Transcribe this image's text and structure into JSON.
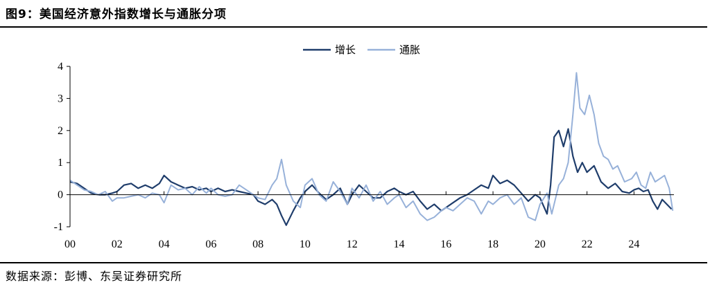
{
  "title": "图9：美国经济意外指数增长与通胀分项",
  "source": "数据来源：彭博、东吴证券研究所",
  "colors": {
    "growth": "#1f3d6b",
    "inflation": "#97b1d9",
    "axis": "#000000"
  },
  "chart_data": {
    "type": "line",
    "title": "",
    "xlabel": "",
    "ylabel": "",
    "xlim": [
      2000,
      2025.7
    ],
    "ylim": [
      -1,
      4
    ],
    "x_ticks": [
      2000,
      2002,
      2004,
      2006,
      2008,
      2010,
      2012,
      2014,
      2016,
      2018,
      2020,
      2022,
      2024
    ],
    "x_tick_labels": [
      "00",
      "02",
      "04",
      "06",
      "08",
      "10",
      "12",
      "14",
      "16",
      "18",
      "20",
      "22",
      "24"
    ],
    "y_ticks": [
      -1,
      0,
      1,
      2,
      3,
      4
    ],
    "y_tick_labels": [
      "-1",
      "0",
      "1",
      "2",
      "3",
      "4"
    ],
    "grid": false,
    "legend_position": "top-center",
    "series": [
      {
        "name": "增长",
        "color": "#1f3d6b",
        "x": [
          2000.0,
          2000.3,
          2000.6,
          2000.9,
          2001.2,
          2001.5,
          2001.8,
          2002.0,
          2002.3,
          2002.6,
          2002.9,
          2003.2,
          2003.5,
          2003.8,
          2004.0,
          2004.3,
          2004.6,
          2004.9,
          2005.2,
          2005.5,
          2005.8,
          2006.0,
          2006.3,
          2006.6,
          2006.9,
          2007.2,
          2007.5,
          2007.8,
          2008.0,
          2008.3,
          2008.6,
          2008.8,
          2009.0,
          2009.2,
          2009.5,
          2009.8,
          2010.0,
          2010.3,
          2010.6,
          2010.9,
          2011.2,
          2011.5,
          2011.8,
          2012.0,
          2012.3,
          2012.6,
          2012.9,
          2013.2,
          2013.5,
          2013.8,
          2014.0,
          2014.3,
          2014.6,
          2014.9,
          2015.2,
          2015.5,
          2015.8,
          2016.0,
          2016.3,
          2016.6,
          2016.9,
          2017.2,
          2017.5,
          2017.8,
          2018.0,
          2018.3,
          2018.6,
          2018.9,
          2019.2,
          2019.5,
          2019.8,
          2020.0,
          2020.3,
          2020.45,
          2020.6,
          2020.8,
          2021.0,
          2021.2,
          2021.4,
          2021.6,
          2021.8,
          2022.0,
          2022.3,
          2022.6,
          2022.9,
          2023.2,
          2023.5,
          2023.8,
          2024.0,
          2024.2,
          2024.4,
          2024.6,
          2024.8,
          2025.0,
          2025.2,
          2025.4,
          2025.6
        ],
        "values": [
          0.4,
          0.35,
          0.2,
          0.05,
          0.0,
          0.0,
          0.05,
          0.1,
          0.3,
          0.35,
          0.2,
          0.3,
          0.2,
          0.35,
          0.6,
          0.4,
          0.3,
          0.2,
          0.25,
          0.15,
          0.2,
          0.1,
          0.2,
          0.1,
          0.15,
          0.1,
          0.05,
          0.0,
          -0.2,
          -0.3,
          -0.15,
          -0.3,
          -0.65,
          -0.95,
          -0.5,
          -0.1,
          0.1,
          0.3,
          0.05,
          -0.15,
          0.0,
          0.2,
          -0.3,
          0.0,
          0.3,
          0.1,
          -0.1,
          -0.1,
          0.1,
          0.2,
          0.1,
          0.0,
          0.1,
          -0.2,
          -0.45,
          -0.3,
          -0.5,
          -0.4,
          -0.25,
          -0.1,
          0.0,
          0.15,
          0.3,
          0.2,
          0.6,
          0.35,
          0.45,
          0.3,
          0.05,
          -0.2,
          0.0,
          -0.1,
          -0.6,
          0.3,
          1.8,
          2.0,
          1.5,
          2.05,
          1.2,
          0.7,
          1.0,
          0.7,
          0.9,
          0.4,
          0.2,
          0.35,
          0.1,
          0.05,
          0.15,
          0.2,
          0.1,
          0.15,
          -0.2,
          -0.45,
          -0.15,
          -0.3,
          -0.45
        ]
      },
      {
        "name": "通胀",
        "color": "#97b1d9",
        "x": [
          2000.0,
          2000.3,
          2000.6,
          2000.9,
          2001.2,
          2001.5,
          2001.8,
          2002.0,
          2002.3,
          2002.6,
          2002.9,
          2003.2,
          2003.5,
          2003.8,
          2004.0,
          2004.3,
          2004.6,
          2004.9,
          2005.2,
          2005.5,
          2005.8,
          2006.0,
          2006.3,
          2006.6,
          2006.9,
          2007.2,
          2007.5,
          2007.8,
          2008.0,
          2008.3,
          2008.6,
          2008.8,
          2009.0,
          2009.2,
          2009.5,
          2009.8,
          2010.0,
          2010.3,
          2010.6,
          2010.9,
          2011.2,
          2011.5,
          2011.8,
          2012.0,
          2012.3,
          2012.6,
          2012.9,
          2013.2,
          2013.5,
          2013.8,
          2014.0,
          2014.3,
          2014.6,
          2014.9,
          2015.2,
          2015.5,
          2015.8,
          2016.0,
          2016.3,
          2016.6,
          2016.9,
          2017.2,
          2017.5,
          2017.8,
          2018.0,
          2018.3,
          2018.6,
          2018.9,
          2019.2,
          2019.5,
          2019.8,
          2020.0,
          2020.3,
          2020.5,
          2020.8,
          2021.0,
          2021.2,
          2021.4,
          2021.55,
          2021.7,
          2021.9,
          2022.1,
          2022.3,
          2022.5,
          2022.7,
          2022.9,
          2023.1,
          2023.3,
          2023.6,
          2023.9,
          2024.1,
          2024.3,
          2024.5,
          2024.7,
          2024.9,
          2025.1,
          2025.3,
          2025.5,
          2025.65
        ],
        "values": [
          0.45,
          0.3,
          0.15,
          0.1,
          0.0,
          0.1,
          -0.2,
          -0.1,
          -0.1,
          -0.05,
          0.0,
          -0.1,
          0.05,
          0.0,
          -0.25,
          0.3,
          0.15,
          0.2,
          0.0,
          0.25,
          0.05,
          0.2,
          0.0,
          -0.05,
          0.0,
          0.3,
          0.15,
          0.0,
          -0.1,
          -0.15,
          0.3,
          0.5,
          1.1,
          0.3,
          -0.2,
          -0.4,
          0.3,
          0.5,
          0.0,
          -0.2,
          0.4,
          0.1,
          -0.3,
          0.2,
          -0.1,
          0.3,
          -0.2,
          0.1,
          -0.3,
          -0.1,
          0.0,
          -0.4,
          -0.2,
          -0.6,
          -0.8,
          -0.7,
          -0.5,
          -0.4,
          -0.5,
          -0.3,
          -0.1,
          -0.2,
          -0.6,
          -0.2,
          -0.3,
          -0.1,
          0.0,
          -0.3,
          -0.1,
          -0.7,
          -0.8,
          -0.3,
          0.05,
          -0.6,
          0.3,
          0.5,
          1.0,
          2.5,
          3.8,
          2.7,
          2.5,
          3.1,
          2.5,
          1.6,
          1.2,
          1.1,
          0.8,
          0.9,
          0.4,
          0.5,
          0.7,
          0.3,
          0.2,
          0.7,
          0.4,
          0.5,
          0.6,
          0.2,
          -0.5
        ]
      }
    ]
  }
}
